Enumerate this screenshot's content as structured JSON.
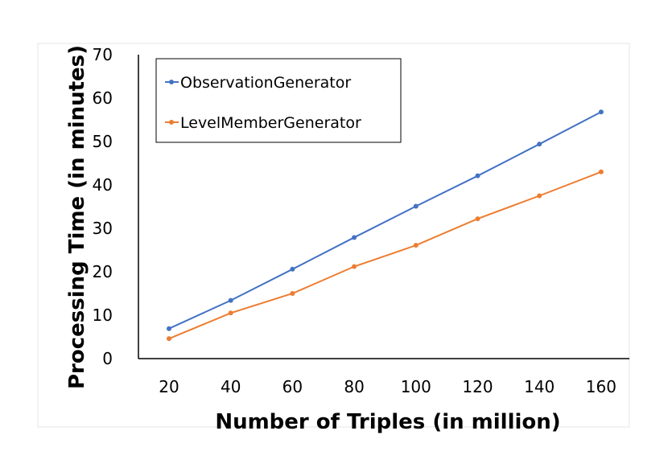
{
  "chart_data": {
    "type": "line",
    "title": "",
    "xlabel": "Number of Triples (in million)",
    "ylabel": "Processing Time (in minutes)",
    "x": [
      20,
      40,
      60,
      80,
      100,
      120,
      140,
      160
    ],
    "x_tick_labels": [
      "20",
      "40",
      "60",
      "80",
      "100",
      "120",
      "140",
      "160"
    ],
    "y_tick_labels": [
      "0",
      "10",
      "20",
      "30",
      "40",
      "50",
      "60",
      "70"
    ],
    "ylim": [
      0,
      70
    ],
    "grid": false,
    "legend_position": "top-left",
    "series": [
      {
        "name": "ObservationGenerator",
        "color": "#4472C4",
        "values": [
          6.9,
          13.4,
          20.6,
          27.9,
          35.1,
          42.1,
          49.4,
          56.8
        ]
      },
      {
        "name": "LevelMemberGenerator",
        "color": "#ED7D31",
        "values": [
          4.6,
          10.5,
          15.0,
          21.2,
          26.1,
          32.2,
          37.5,
          43.0
        ]
      }
    ]
  }
}
